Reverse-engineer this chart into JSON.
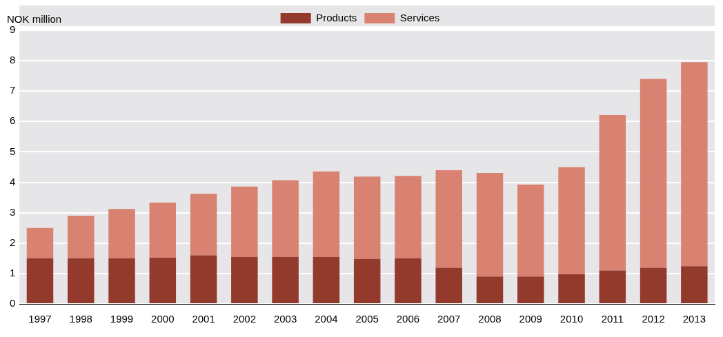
{
  "chart_data": {
    "type": "bar",
    "stacked": true,
    "ylabel": "NOK million",
    "categories": [
      "1997",
      "1998",
      "1999",
      "2000",
      "2001",
      "2002",
      "2003",
      "2004",
      "2005",
      "2006",
      "2007",
      "2008",
      "2009",
      "2010",
      "2011",
      "2012",
      "2013"
    ],
    "series": [
      {
        "name": "Products",
        "color": "#943a2c",
        "values": [
          1.5,
          1.5,
          1.5,
          1.52,
          1.6,
          1.55,
          1.55,
          1.55,
          1.48,
          1.5,
          1.19,
          0.9,
          0.9,
          0.98,
          1.1,
          1.19,
          1.24
        ]
      },
      {
        "name": "Services",
        "color": "#d98271",
        "values": [
          1.0,
          1.4,
          1.62,
          1.81,
          2.02,
          2.31,
          2.52,
          2.81,
          2.71,
          2.71,
          3.21,
          3.41,
          3.03,
          3.52,
          5.11,
          6.21,
          6.71
        ]
      }
    ],
    "ylim": [
      0,
      9
    ],
    "yticks": [
      0,
      1,
      2,
      3,
      4,
      5,
      6,
      7,
      8,
      9
    ],
    "grid": "y",
    "legend": "top"
  }
}
